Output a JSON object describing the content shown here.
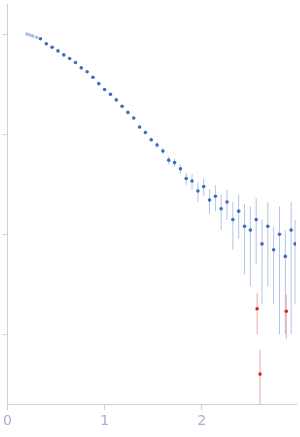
{
  "chart_data": {
    "type": "scatter",
    "log": "y",
    "grid": false,
    "tick_labels": "x",
    "xlim": [
      0,
      2.97
    ],
    "xticks": [
      0,
      1,
      2
    ],
    "ylim": [
      0.0002,
      2
    ],
    "yticks": [
      0.001,
      0.01,
      0.1,
      1
    ],
    "series": [
      {
        "color": "#a9bde3",
        "marker": "circle",
        "x": [
          0.2,
          0.23,
          0.26,
          0.3
        ],
        "values": [
          1.0,
          0.98,
          0.96,
          0.93
        ],
        "errors": [
          0.004,
          0.004,
          0.004,
          0.004
        ]
      },
      {
        "color": "#3d6cc0",
        "marker": "circle",
        "x": [
          0.34,
          0.4,
          0.46,
          0.52,
          0.58,
          0.64,
          0.7,
          0.76,
          0.82,
          0.88,
          0.94,
          1.0,
          1.06,
          1.12,
          1.18,
          1.24,
          1.3,
          1.36,
          1.42,
          1.48,
          1.54,
          1.6,
          1.66,
          1.72,
          1.78,
          1.84,
          1.9,
          1.96,
          2.02,
          2.08,
          2.14,
          2.2,
          2.26,
          2.32,
          2.38,
          2.44,
          2.5,
          2.56,
          2.62,
          2.68,
          2.74,
          2.8,
          2.86,
          2.92,
          2.96
        ],
        "values": [
          0.9,
          0.8,
          0.74,
          0.68,
          0.62,
          0.57,
          0.52,
          0.46,
          0.42,
          0.37,
          0.32,
          0.28,
          0.25,
          0.22,
          0.19,
          0.165,
          0.145,
          0.118,
          0.104,
          0.088,
          0.078,
          0.068,
          0.055,
          0.052,
          0.045,
          0.036,
          0.034,
          0.027,
          0.03,
          0.022,
          0.024,
          0.018,
          0.021,
          0.014,
          0.017,
          0.012,
          0.011,
          0.014,
          0.008,
          0.012,
          0.007,
          0.01,
          0.006,
          0.011,
          0.008
        ],
        "errors": [
          0.004,
          0.004,
          0.004,
          0.004,
          0.004,
          0.004,
          0.004,
          0.004,
          0.004,
          0.004,
          0.004,
          0.004,
          0.004,
          0.004,
          0.004,
          0.004,
          0.004,
          0.004,
          0.004,
          0.004,
          0.005,
          0.005,
          0.005,
          0.005,
          0.005,
          0.005,
          0.006,
          0.006,
          0.006,
          0.006,
          0.007,
          0.007,
          0.007,
          0.007,
          0.008,
          0.008,
          0.008,
          0.009,
          0.006,
          0.009,
          0.005,
          0.009,
          0.005,
          0.01,
          0.006
        ]
      },
      {
        "color": "#d62728",
        "marker": "circle",
        "x": [
          2.57,
          2.6,
          2.87
        ],
        "values": [
          0.0018,
          0.0004,
          0.0017
        ],
        "errors": [
          0.0008,
          0.0003,
          0.0008
        ]
      }
    ]
  }
}
